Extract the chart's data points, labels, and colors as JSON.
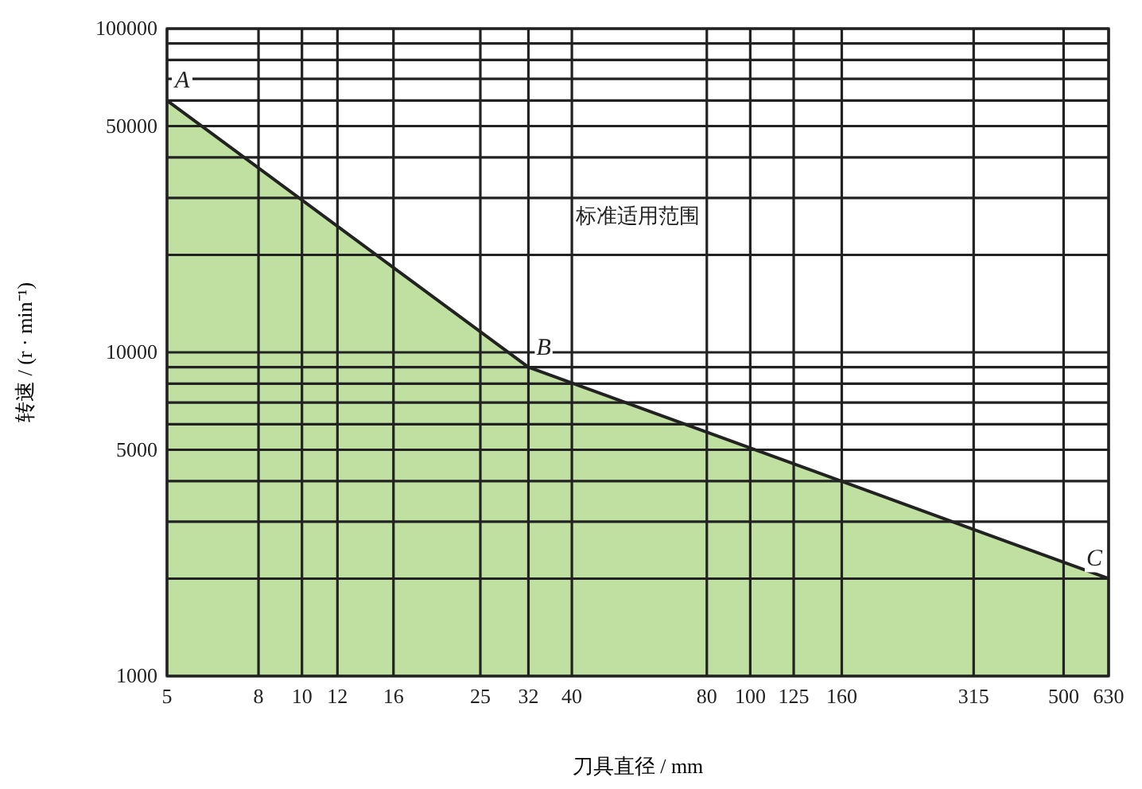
{
  "chart_data": {
    "type": "area",
    "xlabel": "刀具直径 / mm",
    "ylabel": "转速 / (r · min⁻¹)",
    "log": "xy",
    "grid": true,
    "x": [
      5,
      32,
      630
    ],
    "series": [
      {
        "color": "#bfe0a0",
        "values": [
          60000,
          9000,
          2000
        ]
      }
    ],
    "xlim": [
      5,
      630
    ],
    "xticks": [
      5,
      8,
      10,
      12,
      16,
      25,
      32,
      40,
      80,
      100,
      125,
      160,
      315,
      500,
      630
    ],
    "ylim": [
      1000,
      100000
    ],
    "yticks": [
      1000,
      {
        "value": 2000,
        "label": null
      },
      {
        "value": 3000,
        "label": null
      },
      {
        "value": 4000,
        "label": null
      },
      5000,
      {
        "value": 6000,
        "label": null
      },
      {
        "value": 7000,
        "label": null
      },
      {
        "value": 8000,
        "label": null
      },
      {
        "value": 9000,
        "label": null
      },
      10000,
      {
        "value": 20000,
        "label": null
      },
      {
        "value": 30000,
        "label": null
      },
      {
        "value": 40000,
        "label": null
      },
      50000,
      {
        "value": 60000,
        "label": null
      },
      {
        "value": 70000,
        "label": null
      },
      {
        "value": 80000,
        "label": null
      },
      {
        "value": 90000,
        "label": null
      },
      100000
    ],
    "annotations": [
      {
        "text": "A",
        "x": 5,
        "y": 60000
      },
      {
        "text": "B",
        "x": 32,
        "y": 9000
      },
      {
        "text": "C",
        "x": 630,
        "y": 2000
      },
      "标准适用范围"
    ]
  }
}
